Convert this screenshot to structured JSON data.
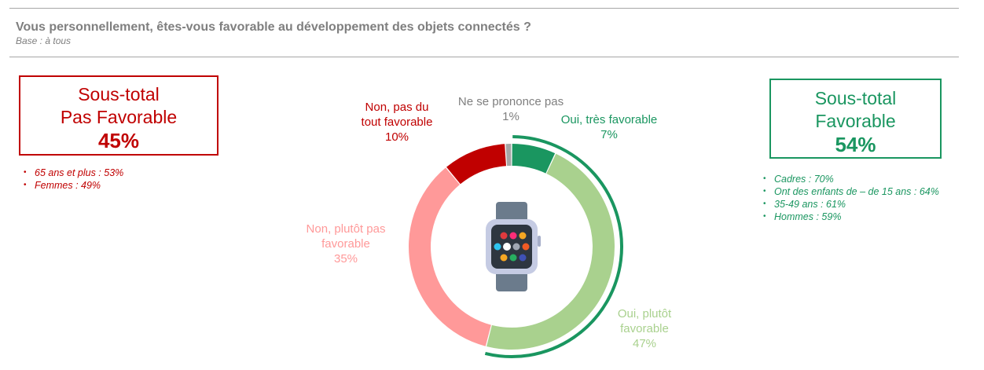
{
  "header": {
    "title": "Vous personnellement, êtes-vous favorable au développement des objets connectés ?",
    "base": "Base : à tous"
  },
  "subtotal_unfavorable": {
    "line1": "Sous-total",
    "line2": "Pas Favorable",
    "value": "45%",
    "details": [
      "65 ans et plus : 53%",
      "Femmes : 49%"
    ]
  },
  "subtotal_favorable": {
    "line1": "Sous-total",
    "line2": "Favorable",
    "value": "54%",
    "details": [
      "Cadres : 70%",
      "Ont des enfants de – de 15 ans : 64%",
      "35-49 ans : 61%",
      "Hommes : 59%"
    ]
  },
  "chart_data": {
    "type": "pie",
    "donut": true,
    "center_icon": "smartwatch-icon",
    "slices": [
      {
        "key": "tres_favorable",
        "label": [
          "Oui, très favorable"
        ],
        "value": 7,
        "value_label": "7%",
        "color": "#1a9660",
        "label_color": "#1a9660"
      },
      {
        "key": "plutot_favorable",
        "label": [
          "Oui, plutôt",
          "favorable"
        ],
        "value": 47,
        "value_label": "47%",
        "color": "#a9d18e",
        "label_color": "#a9d18e"
      },
      {
        "key": "plutot_pas",
        "label": [
          "Non, plutôt pas",
          "favorable"
        ],
        "value": 35,
        "value_label": "35%",
        "color": "#ff9999",
        "label_color": "#ff9999"
      },
      {
        "key": "pas_du_tout",
        "label": [
          "Non, pas du",
          "tout favorable"
        ],
        "value": 10,
        "value_label": "10%",
        "color": "#c00000",
        "label_color": "#c00000"
      },
      {
        "key": "ne_se_prononce_pas",
        "label": [
          "Ne se prononce pas"
        ],
        "value": 1,
        "value_label": "1%",
        "color": "#a6a6a6",
        "label_color": "#7f7f7f"
      }
    ],
    "favorable_arc": {
      "covers": [
        "tres_favorable",
        "plutot_favorable"
      ],
      "color": "#1a9660"
    }
  }
}
